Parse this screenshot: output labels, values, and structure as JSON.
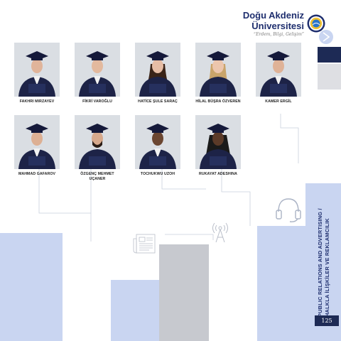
{
  "header": {
    "logo_line1": "Doğu Akdeniz",
    "logo_line2": "Üniversitesi",
    "logo_tagline": "“Erdem, Bilgi, Gelişim”"
  },
  "people": [
    {
      "name": "FAKHRI MIRZAYEV"
    },
    {
      "name": "FİKRİ VAROĞLU"
    },
    {
      "name": "HATİCE ŞULE SARAÇ"
    },
    {
      "name": "HİLAL BÜŞRA ÖZVEREN"
    },
    {
      "name": "KAMER ERGİL"
    },
    {
      "name": "MAHMAD GAFAROV"
    },
    {
      "name": "ÖZGENÇ MEHMET UÇANER"
    },
    {
      "name": "TOCHUKWU UZOH"
    },
    {
      "name": "RUKAYAT ADESHINA"
    }
  ],
  "department": {
    "line1": "PUBLIC RELATIONS AND ADVERTISING /",
    "line2": "HALKLA İLİŞKİLER VE REKLAMCILIK"
  },
  "page_number": "125",
  "colors": {
    "navy": "#1e2e6e",
    "light_blue": "#c9d5f1",
    "gray_block": "#c7c9cf"
  },
  "icons": [
    "antenna-icon",
    "newspaper-icon",
    "headphones-icon",
    "university-seal-icon"
  ]
}
